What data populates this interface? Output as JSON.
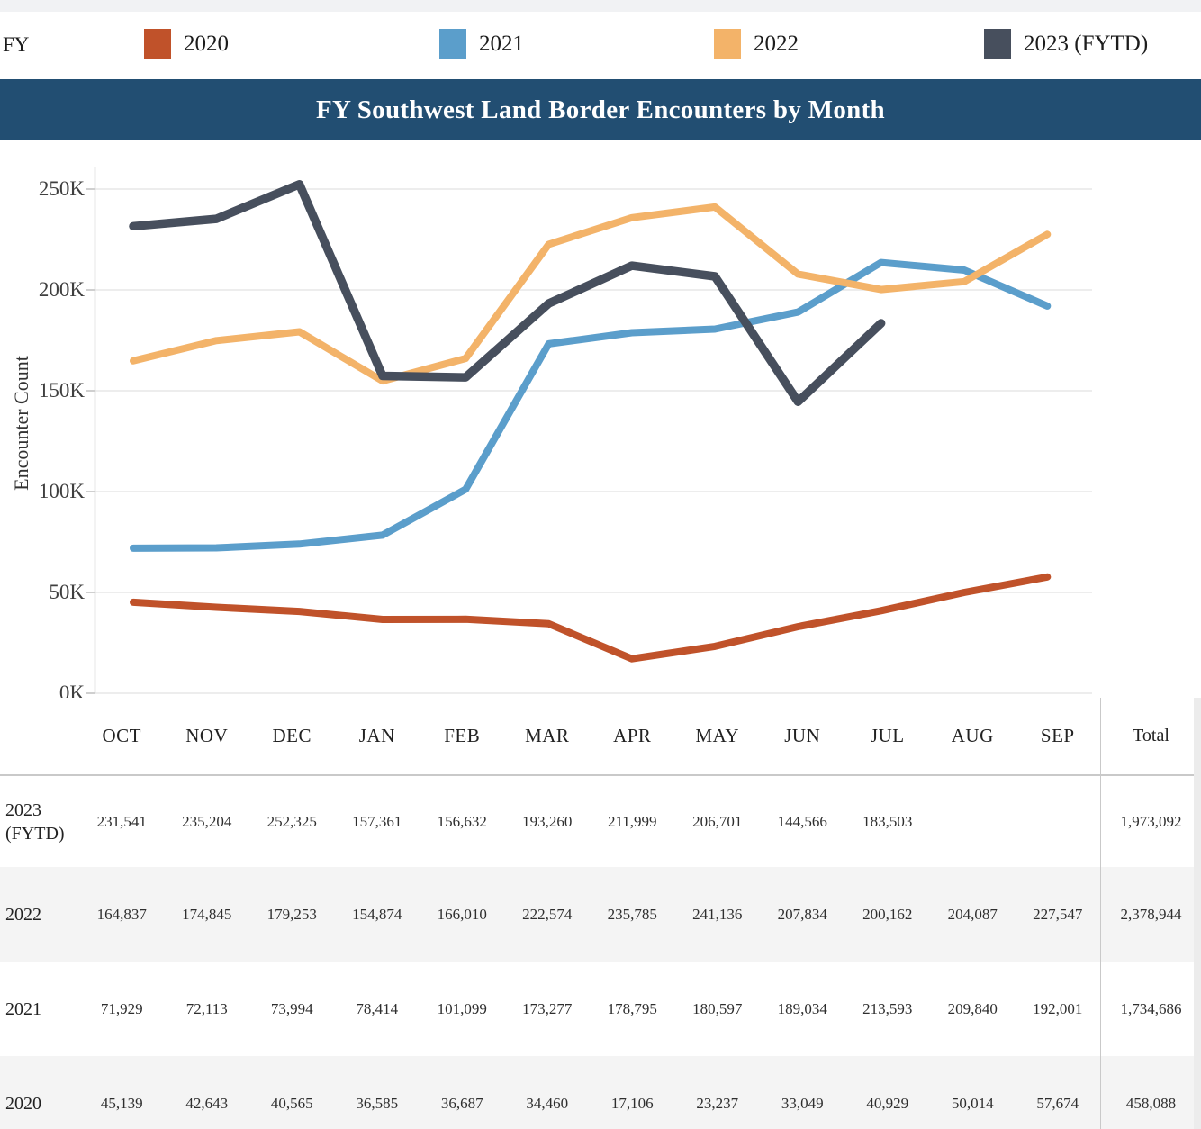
{
  "legend": {
    "label": "FY",
    "items": [
      {
        "label": "2020",
        "color": "#c0522a"
      },
      {
        "label": "2021",
        "color": "#5b9ecb"
      },
      {
        "label": "2022",
        "color": "#f3b369"
      },
      {
        "label": "2023 (FYTD)",
        "color": "#474f5d"
      }
    ]
  },
  "title": "FY Southwest Land Border Encounters by Month",
  "chart_data": {
    "type": "line",
    "title": "FY Southwest Land Border Encounters by Month",
    "x": [
      "OCT",
      "NOV",
      "DEC",
      "JAN",
      "FEB",
      "MAR",
      "APR",
      "MAY",
      "JUN",
      "JUL",
      "AUG",
      "SEP"
    ],
    "xlabel": "",
    "ylabel": "Encounter Count",
    "yticks": [
      "0K",
      "50K",
      "100K",
      "150K",
      "200K",
      "250K"
    ],
    "ylim": [
      0,
      250000
    ],
    "grid": true,
    "legend_position": "top",
    "series": [
      {
        "name": "2020",
        "color": "#c0522a",
        "values": [
          45139,
          42643,
          40565,
          36585,
          36687,
          34460,
          17106,
          23237,
          33049,
          40929,
          50014,
          57674
        ]
      },
      {
        "name": "2021",
        "color": "#5b9ecb",
        "values": [
          71929,
          72113,
          73994,
          78414,
          101099,
          173277,
          178795,
          180597,
          189034,
          213593,
          209840,
          192001
        ]
      },
      {
        "name": "2022",
        "color": "#f3b369",
        "values": [
          164837,
          174845,
          179253,
          154874,
          166010,
          222574,
          235785,
          241136,
          207834,
          200162,
          204087,
          227547
        ]
      },
      {
        "name": "2023 (FYTD)",
        "color": "#474f5d",
        "values": [
          231541,
          235204,
          252325,
          157361,
          156632,
          193260,
          211999,
          206701,
          144566,
          183503,
          null,
          null
        ]
      }
    ]
  },
  "table": {
    "columns": [
      "OCT",
      "NOV",
      "DEC",
      "JAN",
      "FEB",
      "MAR",
      "APR",
      "MAY",
      "JUN",
      "JUL",
      "AUG",
      "SEP",
      "Total"
    ],
    "rows": [
      {
        "label": "2023 (FYTD)",
        "values": [
          "231,541",
          "235,204",
          "252,325",
          "157,361",
          "156,632",
          "193,260",
          "211,999",
          "206,701",
          "144,566",
          "183,503",
          "",
          ""
        ],
        "total": "1,973,092"
      },
      {
        "label": "2022",
        "values": [
          "164,837",
          "174,845",
          "179,253",
          "154,874",
          "166,010",
          "222,574",
          "235,785",
          "241,136",
          "207,834",
          "200,162",
          "204,087",
          "227,547"
        ],
        "total": "2,378,944"
      },
      {
        "label": "2021",
        "values": [
          "71,929",
          "72,113",
          "73,994",
          "78,414",
          "101,099",
          "173,277",
          "178,795",
          "180,597",
          "189,034",
          "213,593",
          "209,840",
          "192,001"
        ],
        "total": "1,734,686"
      },
      {
        "label": "2020",
        "values": [
          "45,139",
          "42,643",
          "40,565",
          "36,585",
          "36,687",
          "34,460",
          "17,106",
          "23,237",
          "33,049",
          "40,929",
          "50,014",
          "57,674"
        ],
        "total": "458,088"
      }
    ]
  }
}
